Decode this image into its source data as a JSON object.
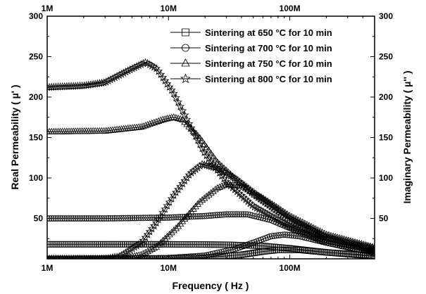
{
  "chart_data": {
    "type": "line",
    "xlabel": "Frequency ( Hz )",
    "ylabel_left": "Real Permeability ( µ' )",
    "ylabel_right": "Imaginary Permeability ( µ'' )",
    "x_scale": "log",
    "xlim": [
      1000000,
      500000000
    ],
    "ylim": [
      0,
      300
    ],
    "x_ticks": [
      {
        "value": 1000000,
        "label": "1M"
      },
      {
        "value": 10000000,
        "label": "10M"
      },
      {
        "value": 100000000,
        "label": "100M"
      }
    ],
    "y_ticks_left": [
      {
        "value": 50,
        "label": "50"
      },
      {
        "value": 100,
        "label": "100"
      },
      {
        "value": 150,
        "label": "150"
      },
      {
        "value": 200,
        "label": "200"
      },
      {
        "value": 250,
        "label": "250"
      },
      {
        "value": 300,
        "label": "300"
      }
    ],
    "y_ticks_right": [
      {
        "value": 50,
        "label": "50"
      },
      {
        "value": 100,
        "label": "100"
      },
      {
        "value": 150,
        "label": "150"
      },
      {
        "value": 200,
        "label": "200"
      },
      {
        "value": 250,
        "label": "250"
      },
      {
        "value": 300,
        "label": "300"
      }
    ],
    "grid": false,
    "legend_position": "top-right",
    "series": [
      {
        "name": "Sintering at 650 °C for 10 min",
        "marker": "square",
        "real": [
          [
            1000000,
            18
          ],
          [
            3000000,
            18
          ],
          [
            10000000,
            18
          ],
          [
            30000000,
            17.5
          ],
          [
            60000000,
            16
          ],
          [
            100000000,
            13
          ],
          [
            200000000,
            8
          ],
          [
            500000000,
            4
          ]
        ],
        "imag": [
          [
            1000000,
            0
          ],
          [
            10000000,
            0.5
          ],
          [
            20000000,
            1.5
          ],
          [
            40000000,
            5
          ],
          [
            60000000,
            9
          ],
          [
            80000000,
            11
          ],
          [
            120000000,
            11
          ],
          [
            200000000,
            8
          ],
          [
            350000000,
            5
          ],
          [
            500000000,
            3
          ]
        ]
      },
      {
        "name": "Sintering at 700 °C for 10 min",
        "marker": "circle",
        "real": [
          [
            1000000,
            50
          ],
          [
            3000000,
            50
          ],
          [
            10000000,
            51
          ],
          [
            20000000,
            53
          ],
          [
            30000000,
            55
          ],
          [
            45000000,
            55
          ],
          [
            70000000,
            48
          ],
          [
            100000000,
            38
          ],
          [
            200000000,
            20
          ],
          [
            500000000,
            8
          ]
        ],
        "imag": [
          [
            1000000,
            0
          ],
          [
            10000000,
            1
          ],
          [
            20000000,
            4
          ],
          [
            35000000,
            12
          ],
          [
            50000000,
            20
          ],
          [
            70000000,
            28
          ],
          [
            90000000,
            30
          ],
          [
            120000000,
            28
          ],
          [
            200000000,
            20
          ],
          [
            350000000,
            12
          ],
          [
            500000000,
            8
          ]
        ]
      },
      {
        "name": "Sintering at 750 °C for 10 min",
        "marker": "triangle",
        "real": [
          [
            1000000,
            157
          ],
          [
            3000000,
            158
          ],
          [
            6000000,
            163
          ],
          [
            9000000,
            172
          ],
          [
            11000000,
            175
          ],
          [
            13000000,
            172
          ],
          [
            18000000,
            150
          ],
          [
            25000000,
            120
          ],
          [
            35000000,
            100
          ],
          [
            50000000,
            80
          ],
          [
            100000000,
            48
          ],
          [
            200000000,
            26
          ],
          [
            500000000,
            12
          ]
        ],
        "imag": [
          [
            1000000,
            0
          ],
          [
            4000000,
            0
          ],
          [
            6000000,
            5
          ],
          [
            8000000,
            15
          ],
          [
            12000000,
            40
          ],
          [
            18000000,
            70
          ],
          [
            25000000,
            87
          ],
          [
            30000000,
            92
          ],
          [
            40000000,
            90
          ],
          [
            60000000,
            75
          ],
          [
            100000000,
            53
          ],
          [
            200000000,
            30
          ],
          [
            500000000,
            14
          ]
        ]
      },
      {
        "name": "Sintering at 800 °C for 10 min",
        "marker": "star",
        "real": [
          [
            1000000,
            212
          ],
          [
            2000000,
            214
          ],
          [
            3000000,
            218
          ],
          [
            5000000,
            235
          ],
          [
            6500000,
            243
          ],
          [
            8000000,
            235
          ],
          [
            11000000,
            205
          ],
          [
            15000000,
            165
          ],
          [
            20000000,
            130
          ],
          [
            30000000,
            95
          ],
          [
            50000000,
            65
          ],
          [
            100000000,
            40
          ],
          [
            200000000,
            22
          ],
          [
            500000000,
            10
          ]
        ],
        "imag": [
          [
            1000000,
            0
          ],
          [
            3000000,
            0
          ],
          [
            4000000,
            3
          ],
          [
            6000000,
            20
          ],
          [
            8000000,
            45
          ],
          [
            11000000,
            78
          ],
          [
            15000000,
            105
          ],
          [
            19000000,
            117
          ],
          [
            25000000,
            112
          ],
          [
            35000000,
            100
          ],
          [
            60000000,
            73
          ],
          [
            100000000,
            50
          ],
          [
            200000000,
            27
          ],
          [
            500000000,
            12
          ]
        ]
      }
    ]
  }
}
